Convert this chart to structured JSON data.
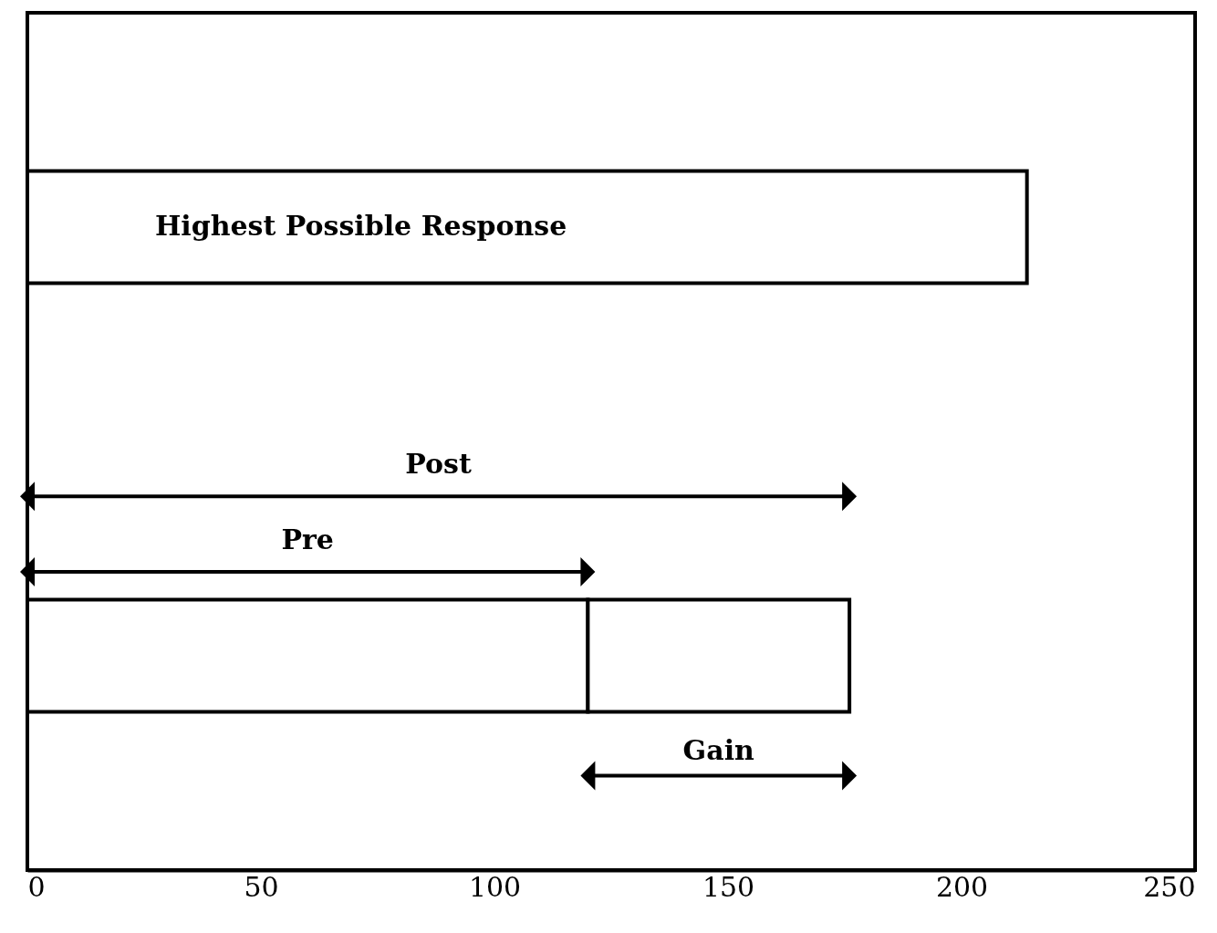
{
  "chart_data": {
    "type": "bar",
    "orientation": "horizontal",
    "stacked": true,
    "categories": [
      null,
      null
    ],
    "series": [
      {
        "name": "Highest Possible Response",
        "color": "#ffffff",
        "values": [
          214,
          null
        ]
      },
      {
        "name": "Pre",
        "color": "#ffffff",
        "values": [
          null,
          120
        ]
      },
      {
        "name": "Gain",
        "color": "#ffffff",
        "values": [
          null,
          56
        ]
      }
    ],
    "annotations": [
      "Post"
    ],
    "xlim": [
      0,
      250
    ],
    "xticks": [
      0,
      50,
      100,
      150,
      200,
      250
    ],
    "grid": false,
    "tick_labels": "x"
  }
}
